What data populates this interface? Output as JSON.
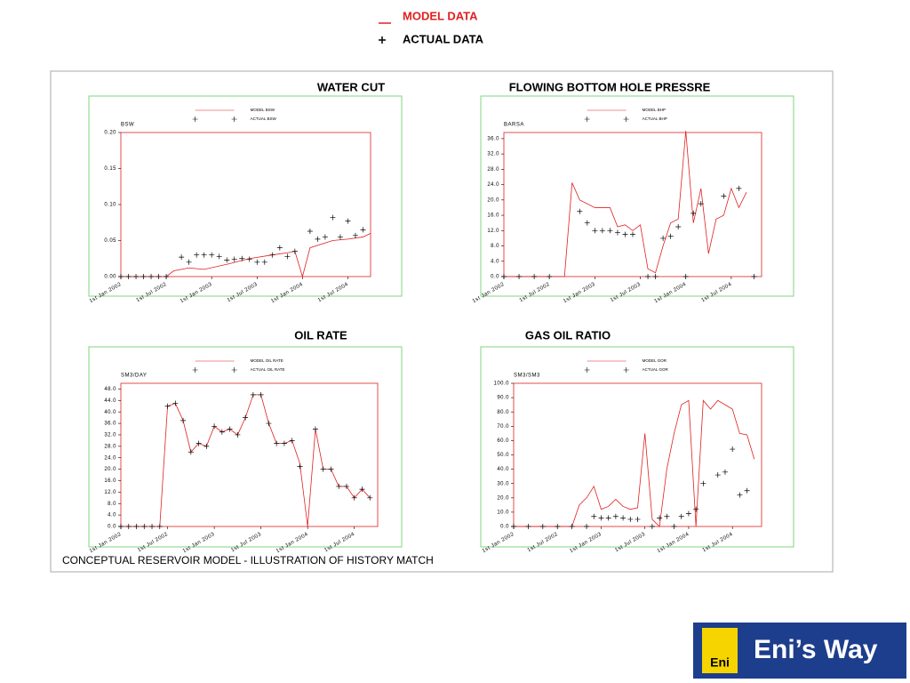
{
  "header_legend": {
    "model": "MODEL DATA",
    "actual": "ACTUAL DATA"
  },
  "caption": "CONCEPTUAL RESERVOIR MODEL - ILLUSTRATION OF HISTORY MATCH",
  "logo": {
    "badge": "Eni",
    "text": "Eni’s Way"
  },
  "chart_data": [
    {
      "type": "line",
      "title": "WATER CUT",
      "ylabel": "BSW",
      "xlim": [
        "2002-01",
        "2004-10"
      ],
      "ylim": [
        0,
        0.2
      ],
      "xticks": [
        {
          "value": "2002-01",
          "label": "1st Jan 2002"
        },
        {
          "value": "2002-07",
          "label": "1st Jul 2002"
        },
        {
          "value": "2003-01",
          "label": "1st Jan 2003"
        },
        {
          "value": "2003-07",
          "label": "1st Jul 2003"
        },
        {
          "value": "2004-01",
          "label": "1st Jan 2004"
        },
        {
          "value": "2004-07",
          "label": "1st Jul 2004"
        }
      ],
      "yticks": [
        {
          "value": 0,
          "label": "0.00"
        },
        0.05,
        {
          "value": 0.1,
          "label": "0.10"
        },
        0.15,
        {
          "value": 0.2,
          "label": "0.20"
        }
      ],
      "series": [
        {
          "name": "MODEL BSW",
          "color": "#e02020",
          "style": "line",
          "x": [
            "2002-01",
            "2002-07",
            "2002-08",
            "2002-10",
            "2002-12",
            "2003-03",
            "2003-06",
            "2003-09",
            "2003-11",
            "2003-12",
            "2004-01",
            "2004-02",
            "2004-05",
            "2004-07",
            "2004-09",
            "2004-10"
          ],
          "values": [
            0,
            0,
            0.008,
            0.012,
            0.01,
            0.017,
            0.025,
            0.03,
            0.033,
            0.035,
            0,
            0.04,
            0.05,
            0.052,
            0.055,
            0.06
          ]
        },
        {
          "name": "ACTUAL BSW",
          "color": "#000000",
          "style": "markers",
          "x": [
            "2002-01",
            "2002-02",
            "2002-03",
            "2002-04",
            "2002-05",
            "2002-06",
            "2002-07",
            "2002-09",
            "2002-10",
            "2002-11",
            "2002-12",
            "2003-01",
            "2003-02",
            "2003-03",
            "2003-04",
            "2003-05",
            "2003-06",
            "2003-07",
            "2003-08",
            "2003-09",
            "2003-10",
            "2003-11",
            "2003-12",
            "2004-02",
            "2004-03",
            "2004-04",
            "2004-05",
            "2004-06",
            "2004-07",
            "2004-08",
            "2004-09"
          ],
          "values": [
            0,
            0,
            0,
            0,
            0,
            0,
            0,
            0.027,
            0.02,
            0.03,
            0.03,
            0.03,
            0.028,
            0.023,
            0.024,
            0.025,
            0.024,
            0.02,
            0.02,
            0.03,
            0.04,
            0.028,
            0.035,
            0.063,
            0.052,
            0.055,
            0.082,
            0.055,
            0.077,
            0.057,
            0.065
          ]
        }
      ]
    },
    {
      "type": "line",
      "title": "FLOWING BOTTOM HOLE PRESSRE",
      "ylabel": "BARSA",
      "xlim": [
        "2002-01",
        "2004-11"
      ],
      "ylim": [
        0,
        37.6
      ],
      "xticks": [
        {
          "value": "2002-01",
          "label": "1st Jan 2002"
        },
        {
          "value": "2002-07",
          "label": "1st Jul 2002"
        },
        {
          "value": "2003-01",
          "label": "1st Jan 2003"
        },
        {
          "value": "2003-07",
          "label": "1st Jul 2003"
        },
        {
          "value": "2004-01",
          "label": "1st Jan 2004"
        },
        {
          "value": "2004-07",
          "label": "1st Jul 2004"
        }
      ],
      "yticks": [
        {
          "value": 0,
          "label": "0.0"
        },
        {
          "value": 4,
          "label": "4.0"
        },
        {
          "value": 8,
          "label": "8.0"
        },
        {
          "value": 12,
          "label": "12.0"
        },
        {
          "value": 16,
          "label": "16.0"
        },
        {
          "value": 20,
          "label": "20.0"
        },
        {
          "value": 24,
          "label": "24.0"
        },
        {
          "value": 28,
          "label": "28.0"
        },
        {
          "value": 32,
          "label": "32.0"
        },
        {
          "value": 36,
          "label": "36.0"
        }
      ],
      "series": [
        {
          "name": "MODEL BHP",
          "color": "#e02020",
          "style": "line",
          "x": [
            "2002-01",
            "2002-09",
            "2002-10",
            "2002-11",
            "2003-01",
            "2003-03",
            "2003-04",
            "2003-05",
            "2003-06",
            "2003-07",
            "2003-08",
            "2003-09",
            "2003-10",
            "2003-11",
            "2003-12",
            "2004-01",
            "2004-02",
            "2004-03",
            "2004-04",
            "2004-05",
            "2004-06",
            "2004-07",
            "2004-08",
            "2004-09"
          ],
          "values": [
            0,
            0,
            24.5,
            20,
            18,
            18,
            13,
            13.5,
            12,
            13.5,
            2,
            1,
            8,
            14,
            15,
            38,
            14,
            23,
            6,
            15,
            16,
            23,
            18,
            22
          ]
        },
        {
          "name": "ACTUAL BHP",
          "color": "#000000",
          "style": "markers",
          "x": [
            "2002-01",
            "2002-03",
            "2002-05",
            "2002-07",
            "2002-11",
            "2002-12",
            "2003-01",
            "2003-02",
            "2003-03",
            "2003-04",
            "2003-05",
            "2003-06",
            "2003-08",
            "2003-09",
            "2003-10",
            "2003-11",
            "2003-12",
            "2004-01",
            "2004-02",
            "2004-03",
            "2004-06",
            "2004-08",
            "2004-10"
          ],
          "values": [
            0,
            0,
            0,
            0,
            17,
            14,
            12,
            12,
            12,
            11.5,
            11,
            11,
            0,
            0,
            10,
            10.5,
            13,
            0,
            16.5,
            19,
            21,
            23,
            0
          ]
        }
      ]
    },
    {
      "type": "line",
      "title": "OIL RATE",
      "ylabel": "SM3/DAY",
      "xlim": [
        "2002-01",
        "2004-10"
      ],
      "ylim": [
        0,
        50
      ],
      "xticks": [
        {
          "value": "2002-01",
          "label": "1st Jan 2002"
        },
        {
          "value": "2002-07",
          "label": "1st Jul 2002"
        },
        {
          "value": "2003-01",
          "label": "1st Jan 2003"
        },
        {
          "value": "2003-07",
          "label": "1st Jul 2003"
        },
        {
          "value": "2004-01",
          "label": "1st Jan 2004"
        },
        {
          "value": "2004-07",
          "label": "1st Jul 2004"
        }
      ],
      "yticks": [
        {
          "value": 0,
          "label": "0.0"
        },
        {
          "value": 4,
          "label": "4.0"
        },
        {
          "value": 8,
          "label": "8.0"
        },
        {
          "value": 12,
          "label": "12.0"
        },
        {
          "value": 16,
          "label": "16.0"
        },
        {
          "value": 20,
          "label": "20.0"
        },
        {
          "value": 24,
          "label": "24.0"
        },
        {
          "value": 28,
          "label": "28.0"
        },
        {
          "value": 32,
          "label": "32.0"
        },
        {
          "value": 36,
          "label": "36.0"
        },
        {
          "value": 40,
          "label": "40.0"
        },
        {
          "value": 44,
          "label": "44.0"
        },
        {
          "value": 48,
          "label": "48.0"
        }
      ],
      "series": [
        {
          "name": "MODEL OIL RATE",
          "color": "#e02020",
          "style": "line",
          "x": [
            "2002-01",
            "2002-06",
            "2002-07",
            "2002-08",
            "2002-09",
            "2002-10",
            "2002-11",
            "2002-12",
            "2003-01",
            "2003-02",
            "2003-03",
            "2003-04",
            "2003-05",
            "2003-06",
            "2003-07",
            "2003-08",
            "2003-09",
            "2003-10",
            "2003-11",
            "2003-12",
            "2004-01",
            "2004-02",
            "2004-03",
            "2004-04",
            "2004-05",
            "2004-06",
            "2004-07",
            "2004-08",
            "2004-09"
          ],
          "values": [
            0,
            0,
            42,
            43,
            37,
            26,
            29,
            28,
            35,
            33,
            34,
            32,
            38,
            46,
            46,
            36,
            29,
            29,
            30,
            22,
            0,
            34,
            20,
            20,
            14,
            14,
            10,
            13,
            10
          ]
        },
        {
          "name": "ACTUAL OIL RATE",
          "color": "#000000",
          "style": "markers",
          "x": [
            "2002-01",
            "2002-02",
            "2002-03",
            "2002-04",
            "2002-05",
            "2002-06",
            "2002-07",
            "2002-08",
            "2002-09",
            "2002-10",
            "2002-11",
            "2002-12",
            "2003-01",
            "2003-02",
            "2003-03",
            "2003-04",
            "2003-05",
            "2003-06",
            "2003-07",
            "2003-08",
            "2003-09",
            "2003-10",
            "2003-11",
            "2003-12",
            "2004-02",
            "2004-03",
            "2004-04",
            "2004-05",
            "2004-06",
            "2004-07",
            "2004-08",
            "2004-09"
          ],
          "values": [
            0,
            0,
            0,
            0,
            0,
            0,
            42,
            43,
            37,
            26,
            29,
            28,
            35,
            33,
            34,
            32,
            38,
            46,
            46,
            36,
            29,
            29,
            30,
            21,
            34,
            20,
            20,
            14,
            14,
            10,
            13,
            10
          ]
        }
      ]
    },
    {
      "type": "line",
      "title": "GAS OIL RATIO",
      "ylabel": "SM3/SM3",
      "xlim": [
        "2002-01",
        "2004-11"
      ],
      "ylim": [
        0,
        100
      ],
      "xticks": [
        {
          "value": "2002-01",
          "label": "1st Jan 2002"
        },
        {
          "value": "2002-07",
          "label": "1st Jul 2002"
        },
        {
          "value": "2003-01",
          "label": "1st Jan 2003"
        },
        {
          "value": "2003-07",
          "label": "1st Jul 2003"
        },
        {
          "value": "2004-01",
          "label": "1st Jan 2004"
        },
        {
          "value": "2004-07",
          "label": "1st Jul 2004"
        }
      ],
      "yticks": [
        {
          "value": 0,
          "label": "0.0"
        },
        {
          "value": 10,
          "label": "10.0"
        },
        {
          "value": 20,
          "label": "20.0"
        },
        {
          "value": 30,
          "label": "30.0"
        },
        {
          "value": 40,
          "label": "40.0"
        },
        {
          "value": 50,
          "label": "50.0"
        },
        {
          "value": 60,
          "label": "60.0"
        },
        {
          "value": 70,
          "label": "70.0"
        },
        {
          "value": 80,
          "label": "80.0"
        },
        {
          "value": 90,
          "label": "90.0"
        },
        {
          "value": 100,
          "label": "100.0"
        }
      ],
      "series": [
        {
          "name": "MODEL GOR",
          "color": "#e02020",
          "style": "line",
          "x": [
            "2002-01",
            "2002-09",
            "2002-10",
            "2002-11",
            "2002-12",
            "2003-01",
            "2003-02",
            "2003-03",
            "2003-04",
            "2003-05",
            "2003-06",
            "2003-07",
            "2003-08",
            "2003-09",
            "2003-10",
            "2003-11",
            "2003-12",
            "2004-01",
            "2004-02",
            "2004-03",
            "2004-04",
            "2004-05",
            "2004-06",
            "2004-07",
            "2004-08",
            "2004-09",
            "2004-10"
          ],
          "values": [
            0,
            0,
            15,
            20,
            28,
            12,
            14,
            19,
            14,
            12,
            13,
            65,
            5,
            0,
            40,
            65,
            85,
            88,
            0,
            88,
            82,
            88,
            85,
            82,
            65,
            64,
            47
          ]
        },
        {
          "name": "ACTUAL GOR",
          "color": "#000000",
          "style": "markers",
          "x": [
            "2002-01",
            "2002-03",
            "2002-05",
            "2002-07",
            "2002-09",
            "2002-11",
            "2002-12",
            "2003-01",
            "2003-02",
            "2003-03",
            "2003-04",
            "2003-05",
            "2003-06",
            "2003-08",
            "2003-09",
            "2003-10",
            "2003-11",
            "2003-12",
            "2004-01",
            "2004-02",
            "2004-03",
            "2004-05",
            "2004-06",
            "2004-07",
            "2004-08",
            "2004-09"
          ],
          "values": [
            0,
            0,
            0,
            0,
            0,
            0,
            7,
            6,
            6,
            7,
            6,
            5,
            5,
            0,
            6,
            7,
            0,
            7,
            9,
            12,
            30,
            36,
            38,
            54,
            22,
            25
          ]
        }
      ]
    }
  ]
}
